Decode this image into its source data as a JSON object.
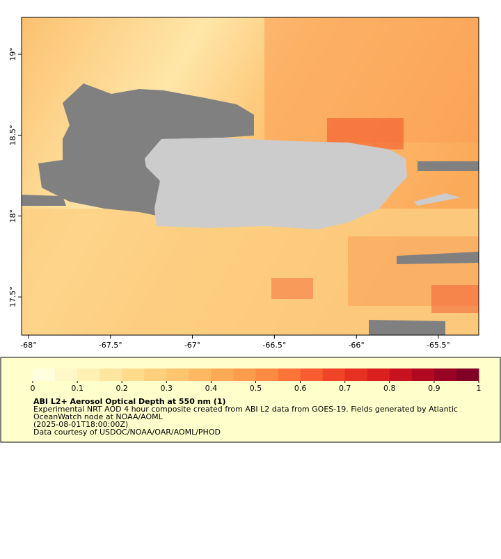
{
  "map": {
    "xlim": [
      -68.042,
      -65.254
    ],
    "ylim": [
      17.264,
      19.228
    ],
    "xticks": [
      {
        "value": -68,
        "label": "-68°"
      },
      {
        "value": -67.5,
        "label": "-67.5°"
      },
      {
        "value": -67,
        "label": "-67°"
      },
      {
        "value": -66.5,
        "label": "-66.5°"
      },
      {
        "value": -66,
        "label": "-66°"
      },
      {
        "value": -65.5,
        "label": "-65.5°"
      }
    ],
    "yticks": [
      {
        "value": 17.5,
        "label": "17.5°"
      },
      {
        "value": 18,
        "label": "18°"
      },
      {
        "value": 18.5,
        "label": "18.5°"
      },
      {
        "value": 19,
        "label": "19°"
      }
    ]
  },
  "colorbar": {
    "range": [
      0,
      1
    ],
    "ticks": [
      0,
      0.1,
      0.2,
      0.3,
      0.4,
      0.5,
      0.6,
      0.7,
      0.8,
      0.9,
      1
    ],
    "colors": [
      "#ffffe0",
      "#fff8c8",
      "#fff0b4",
      "#ffe6a0",
      "#fedc8c",
      "#fecf7c",
      "#fec46e",
      "#feb862",
      "#fdaa56",
      "#fd9c4c",
      "#fc8a42",
      "#fc7439",
      "#f95c30",
      "#f04428",
      "#e63022",
      "#d9201f",
      "#c8121f",
      "#b30822",
      "#9a0424",
      "#800026"
    ]
  },
  "legend": {
    "title": "ABI L2+ Aerosol Optical Depth at 550 nm (1)",
    "lines": [
      "Experimental NRT AOD 4 hour composite created from ABI L2 data from GOES-19. Fields generated by Atlantic",
      "OceanWatch node at NOAA/AOML",
      "(2025-08-01T18:00:00Z)",
      "Data courtesy of USDOC/NOAA/OAR/AOML/PHOD"
    ]
  }
}
